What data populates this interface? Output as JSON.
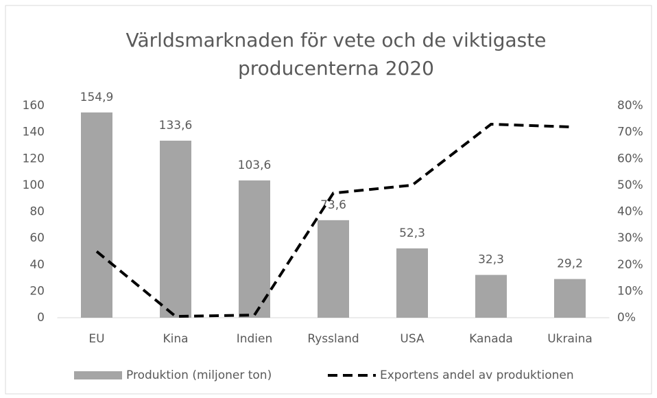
{
  "chart_data": {
    "type": "bar",
    "title": [
      "Världsmarknaden för vete och de viktigaste",
      "producenterna 2020"
    ],
    "categories": [
      "EU",
      "Kina",
      "Indien",
      "Ryssland",
      "USA",
      "Kanada",
      "Ukraina"
    ],
    "series": [
      {
        "name": "Produktion (miljoner ton)",
        "type": "bar",
        "color": "#a5a5a5",
        "values": [
          154.9,
          133.6,
          103.6,
          73.6,
          52.3,
          32.3,
          29.2
        ],
        "value_labels": [
          "154,9",
          "133,6",
          "103,6",
          "73,6",
          "52,3",
          "32,3",
          "29,2"
        ]
      },
      {
        "name": "Exportens andel av produktionen",
        "type": "line",
        "color": "#000000",
        "dashed": true,
        "axis": "y2",
        "values": [
          25,
          0.5,
          1,
          47,
          50,
          73,
          72
        ]
      }
    ],
    "ylim": [
      0,
      160
    ],
    "yticks": [
      0,
      20,
      40,
      60,
      80,
      100,
      120,
      140,
      160
    ],
    "y2lim": [
      0,
      80
    ],
    "y2ticks": [
      {
        "value": 0,
        "label": "0%"
      },
      {
        "value": 10,
        "label": "10%"
      },
      {
        "value": 20,
        "label": "20%"
      },
      {
        "value": 30,
        "label": "30%"
      },
      {
        "value": 40,
        "label": "40%"
      },
      {
        "value": 50,
        "label": "50%"
      },
      {
        "value": 60,
        "label": "60%"
      },
      {
        "value": 70,
        "label": "70%"
      },
      {
        "value": 80,
        "label": "80%"
      }
    ],
    "legend": "bottom",
    "grid": false
  }
}
